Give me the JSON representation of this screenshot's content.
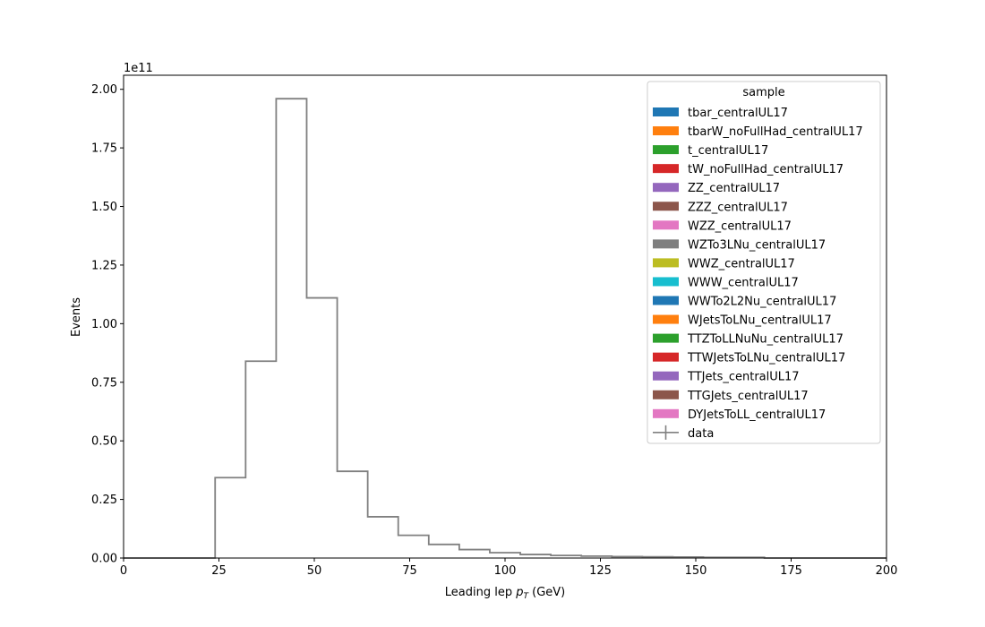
{
  "chart_data": {
    "type": "histogram",
    "xlabel_main": "Leading lep ",
    "xlabel_sym": "p",
    "xlabel_sub": "T",
    "xlabel_unit": " (GeV)",
    "ylabel": "Events",
    "y_offset_label": "1e11",
    "xlim": [
      0,
      200
    ],
    "ylim": [
      0,
      2.06
    ],
    "y_scale": 100000000000.0,
    "x_ticks": [
      0,
      25,
      50,
      75,
      100,
      125,
      150,
      175,
      200
    ],
    "x_tick_labels": [
      "0",
      "25",
      "50",
      "75",
      "100",
      "125",
      "150",
      "175",
      "200"
    ],
    "y_ticks": [
      0,
      0.25,
      0.5,
      0.75,
      1.0,
      1.25,
      1.5,
      1.75,
      2.0
    ],
    "y_tick_labels": [
      "0.00",
      "0.25",
      "0.50",
      "0.75",
      "1.00",
      "1.25",
      "1.50",
      "1.75",
      "2.00"
    ],
    "bin_edges": [
      0,
      8,
      16,
      24,
      32,
      40,
      48,
      56,
      64,
      72,
      80,
      88,
      96,
      104,
      112,
      120,
      128,
      136,
      144,
      152,
      160,
      168,
      200
    ],
    "series": [
      {
        "name": "data",
        "color": "#808080",
        "values": [
          0,
          0,
          0,
          0.343,
          0.84,
          1.96,
          1.11,
          0.37,
          0.176,
          0.097,
          0.058,
          0.036,
          0.023,
          0.015,
          0.011,
          0.008,
          0.006,
          0.005,
          0.004,
          0.003,
          0.003,
          0
        ]
      }
    ],
    "legend": {
      "title": "sample",
      "placement": "top-right",
      "entries": [
        {
          "label": "tbar_centralUL17",
          "color": "#1f77b4",
          "kind": "patch"
        },
        {
          "label": "tbarW_noFullHad_centralUL17",
          "color": "#ff7f0e",
          "kind": "patch"
        },
        {
          "label": "t_centralUL17",
          "color": "#2ca02c",
          "kind": "patch"
        },
        {
          "label": "tW_noFullHad_centralUL17",
          "color": "#d62728",
          "kind": "patch"
        },
        {
          "label": "ZZ_centralUL17",
          "color": "#9467bd",
          "kind": "patch"
        },
        {
          "label": "ZZZ_centralUL17",
          "color": "#8c564b",
          "kind": "patch"
        },
        {
          "label": "WZZ_centralUL17",
          "color": "#e377c2",
          "kind": "patch"
        },
        {
          "label": "WZTo3LNu_centralUL17",
          "color": "#7f7f7f",
          "kind": "patch"
        },
        {
          "label": "WWZ_centralUL17",
          "color": "#bcbd22",
          "kind": "patch"
        },
        {
          "label": "WWW_centralUL17",
          "color": "#17becf",
          "kind": "patch"
        },
        {
          "label": "WWTo2L2Nu_centralUL17",
          "color": "#1f77b4",
          "kind": "patch"
        },
        {
          "label": "WJetsToLNu_centralUL17",
          "color": "#ff7f0e",
          "kind": "patch"
        },
        {
          "label": "TTZToLLNuNu_centralUL17",
          "color": "#2ca02c",
          "kind": "patch"
        },
        {
          "label": "TTWJetsToLNu_centralUL17",
          "color": "#d62728",
          "kind": "patch"
        },
        {
          "label": "TTJets_centralUL17",
          "color": "#9467bd",
          "kind": "patch"
        },
        {
          "label": "TTGJets_centralUL17",
          "color": "#8c564b",
          "kind": "patch"
        },
        {
          "label": "DYJetsToLL_centralUL17",
          "color": "#e377c2",
          "kind": "patch"
        },
        {
          "label": "data",
          "color": "#808080",
          "kind": "errorbar"
        }
      ]
    }
  }
}
